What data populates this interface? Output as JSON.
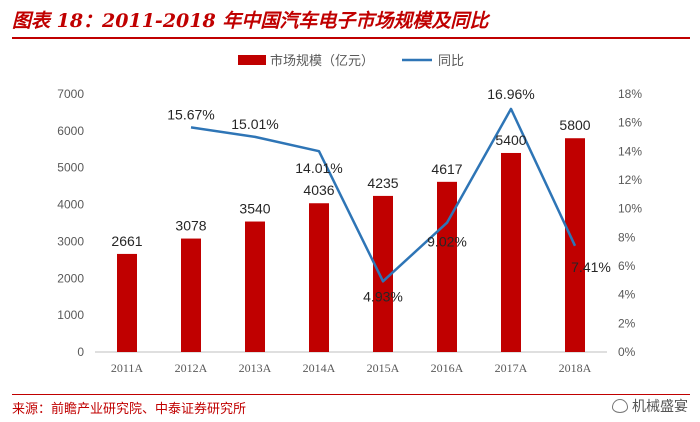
{
  "title": "图表 18：2011-2018 年中国汽车电子市场规模及同比",
  "source": "来源：前瞻产业研究院、中泰证券研究所",
  "watermark": "机械盛宴",
  "colors": {
    "bar": "#c00000",
    "line": "#2e75b6",
    "axis_text": "#595959",
    "accent": "#c00000"
  },
  "chart_data": {
    "type": "bar",
    "title": "2011-2018 年中国汽车电子市场规模及同比",
    "categories": [
      "2011A",
      "2012A",
      "2013A",
      "2014A",
      "2015A",
      "2016A",
      "2017A",
      "2018A"
    ],
    "series": [
      {
        "name": "市场规模（亿元）",
        "type": "bar",
        "axis": "left",
        "values": [
          2661,
          3078,
          3540,
          4036,
          4235,
          4617,
          5400,
          5800
        ],
        "labels": [
          "2661",
          "3078",
          "3540",
          "4036",
          "4235",
          "4617",
          "5400",
          "5800"
        ]
      },
      {
        "name": "同比",
        "type": "line",
        "axis": "right",
        "values": [
          null,
          15.67,
          15.01,
          14.01,
          4.93,
          9.02,
          16.96,
          7.41
        ],
        "labels": [
          "",
          "15.67%",
          "15.01%",
          "14.01%",
          "4.93%",
          "9.02%",
          "16.96%",
          "7.41%"
        ]
      }
    ],
    "y_left": {
      "min": 0,
      "max": 7000,
      "ticks": [
        "0",
        "1000",
        "2000",
        "3000",
        "4000",
        "5000",
        "6000",
        "7000"
      ]
    },
    "y_right": {
      "min": 0,
      "max": 18,
      "ticks": [
        "0%",
        "2%",
        "4%",
        "6%",
        "8%",
        "10%",
        "12%",
        "14%",
        "16%",
        "18%"
      ]
    },
    "legend_position": "top-center",
    "grid": false
  }
}
